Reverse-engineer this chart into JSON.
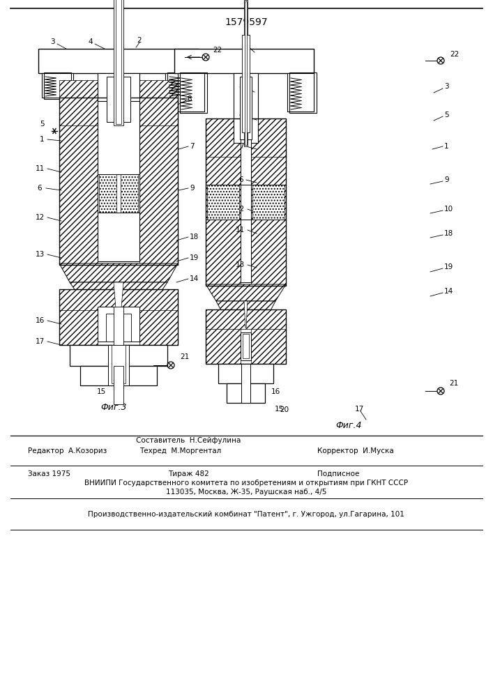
{
  "patent_number": "1579597",
  "fig3_label": "Фиг.3",
  "fig4_label": "Фиг.4",
  "editor_line": "Редактор  А.Козориз",
  "composer_line1": "Составитель  Н.Сейфулина",
  "composer_line2": "Техред  М.Моргентал",
  "corrector_line": "Корректор  И.Муска",
  "order_line": "Заказ 1975",
  "circulation_line": "Тираж 482",
  "subscription_line": "Подписное",
  "vniipи_line": "ВНИИПИ Государственного комитета по изобретениям и открытиям при ГКНТ СССР",
  "address_line": "113035, Москва, Ж-35, Раушская наб., 4/5",
  "production_line": "Производственно-издательский комбинат \"Патент\", г. Ужгород, ул.Гагарина, 101",
  "bg_color": "#ffffff"
}
